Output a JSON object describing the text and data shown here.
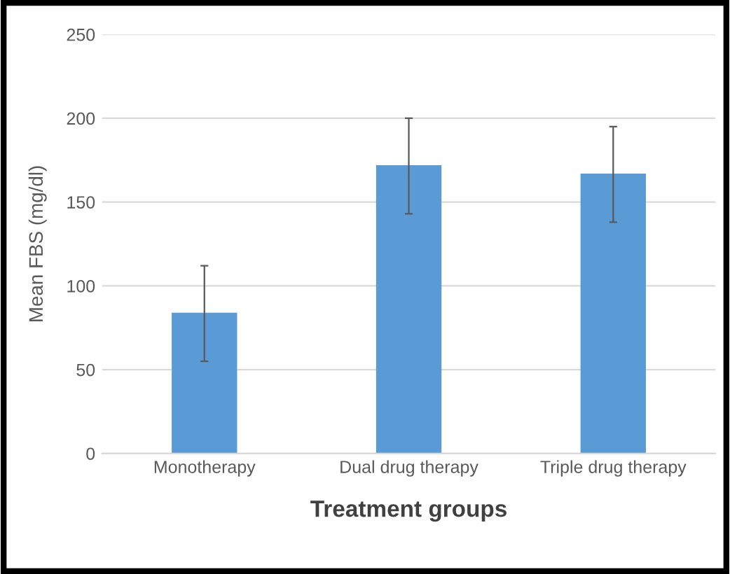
{
  "chart_data": {
    "type": "bar",
    "xlabel": "Treatment groups",
    "ylabel": "Mean FBS (mg/dl)",
    "categories": [
      "Monotherapy",
      "Dual drug therapy",
      "Triple drug therapy"
    ],
    "values": [
      84,
      172,
      167
    ],
    "errors": [
      [
        55,
        112
      ],
      [
        143,
        200
      ],
      [
        138,
        195
      ]
    ],
    "color": "#5b9bd5",
    "ylim": [
      0,
      250
    ],
    "yticks": [
      0,
      50,
      100,
      150,
      200,
      250
    ],
    "grid": "y"
  }
}
